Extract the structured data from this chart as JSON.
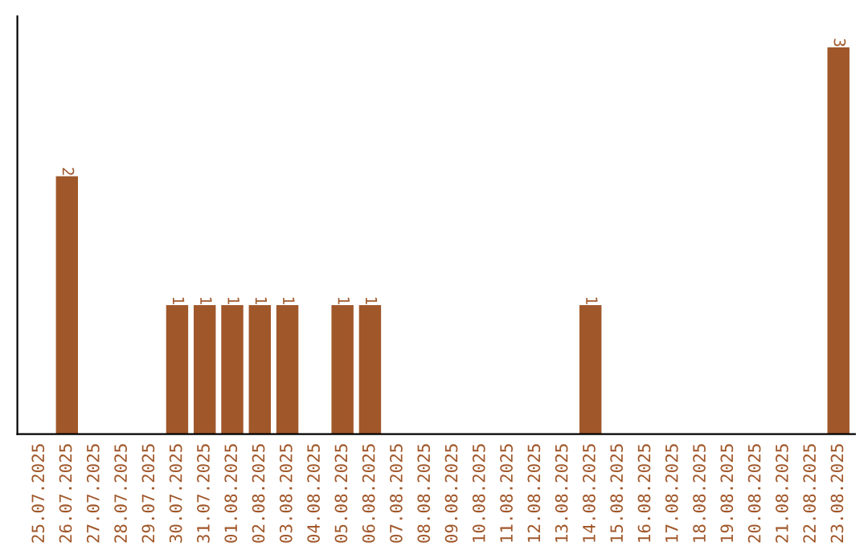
{
  "chart_data": {
    "type": "bar",
    "categories": [
      "25.07.2025",
      "26.07.2025",
      "27.07.2025",
      "28.07.2025",
      "29.07.2025",
      "30.07.2025",
      "31.07.2025",
      "01.08.2025",
      "02.08.2025",
      "03.08.2025",
      "04.08.2025",
      "05.08.2025",
      "06.08.2025",
      "07.08.2025",
      "08.08.2025",
      "09.08.2025",
      "10.08.2025",
      "11.08.2025",
      "12.08.2025",
      "13.08.2025",
      "14.08.2025",
      "15.08.2025",
      "16.08.2025",
      "17.08.2025",
      "18.08.2025",
      "19.08.2025",
      "20.08.2025",
      "21.08.2025",
      "22.08.2025",
      "23.08.2025"
    ],
    "values": [
      0,
      2,
      0,
      0,
      0,
      1,
      1,
      1,
      1,
      1,
      0,
      1,
      1,
      0,
      0,
      0,
      0,
      0,
      0,
      0,
      1,
      0,
      0,
      0,
      0,
      0,
      0,
      0,
      0,
      3
    ],
    "value_labels": [
      null,
      "2",
      null,
      null,
      null,
      "1",
      "1",
      "1",
      "1",
      "1",
      null,
      "1",
      "1",
      null,
      null,
      null,
      null,
      null,
      null,
      null,
      "1",
      null,
      null,
      null,
      null,
      null,
      null,
      null,
      null,
      "3"
    ],
    "color": "#a0572a",
    "grid": false,
    "legend": false
  }
}
